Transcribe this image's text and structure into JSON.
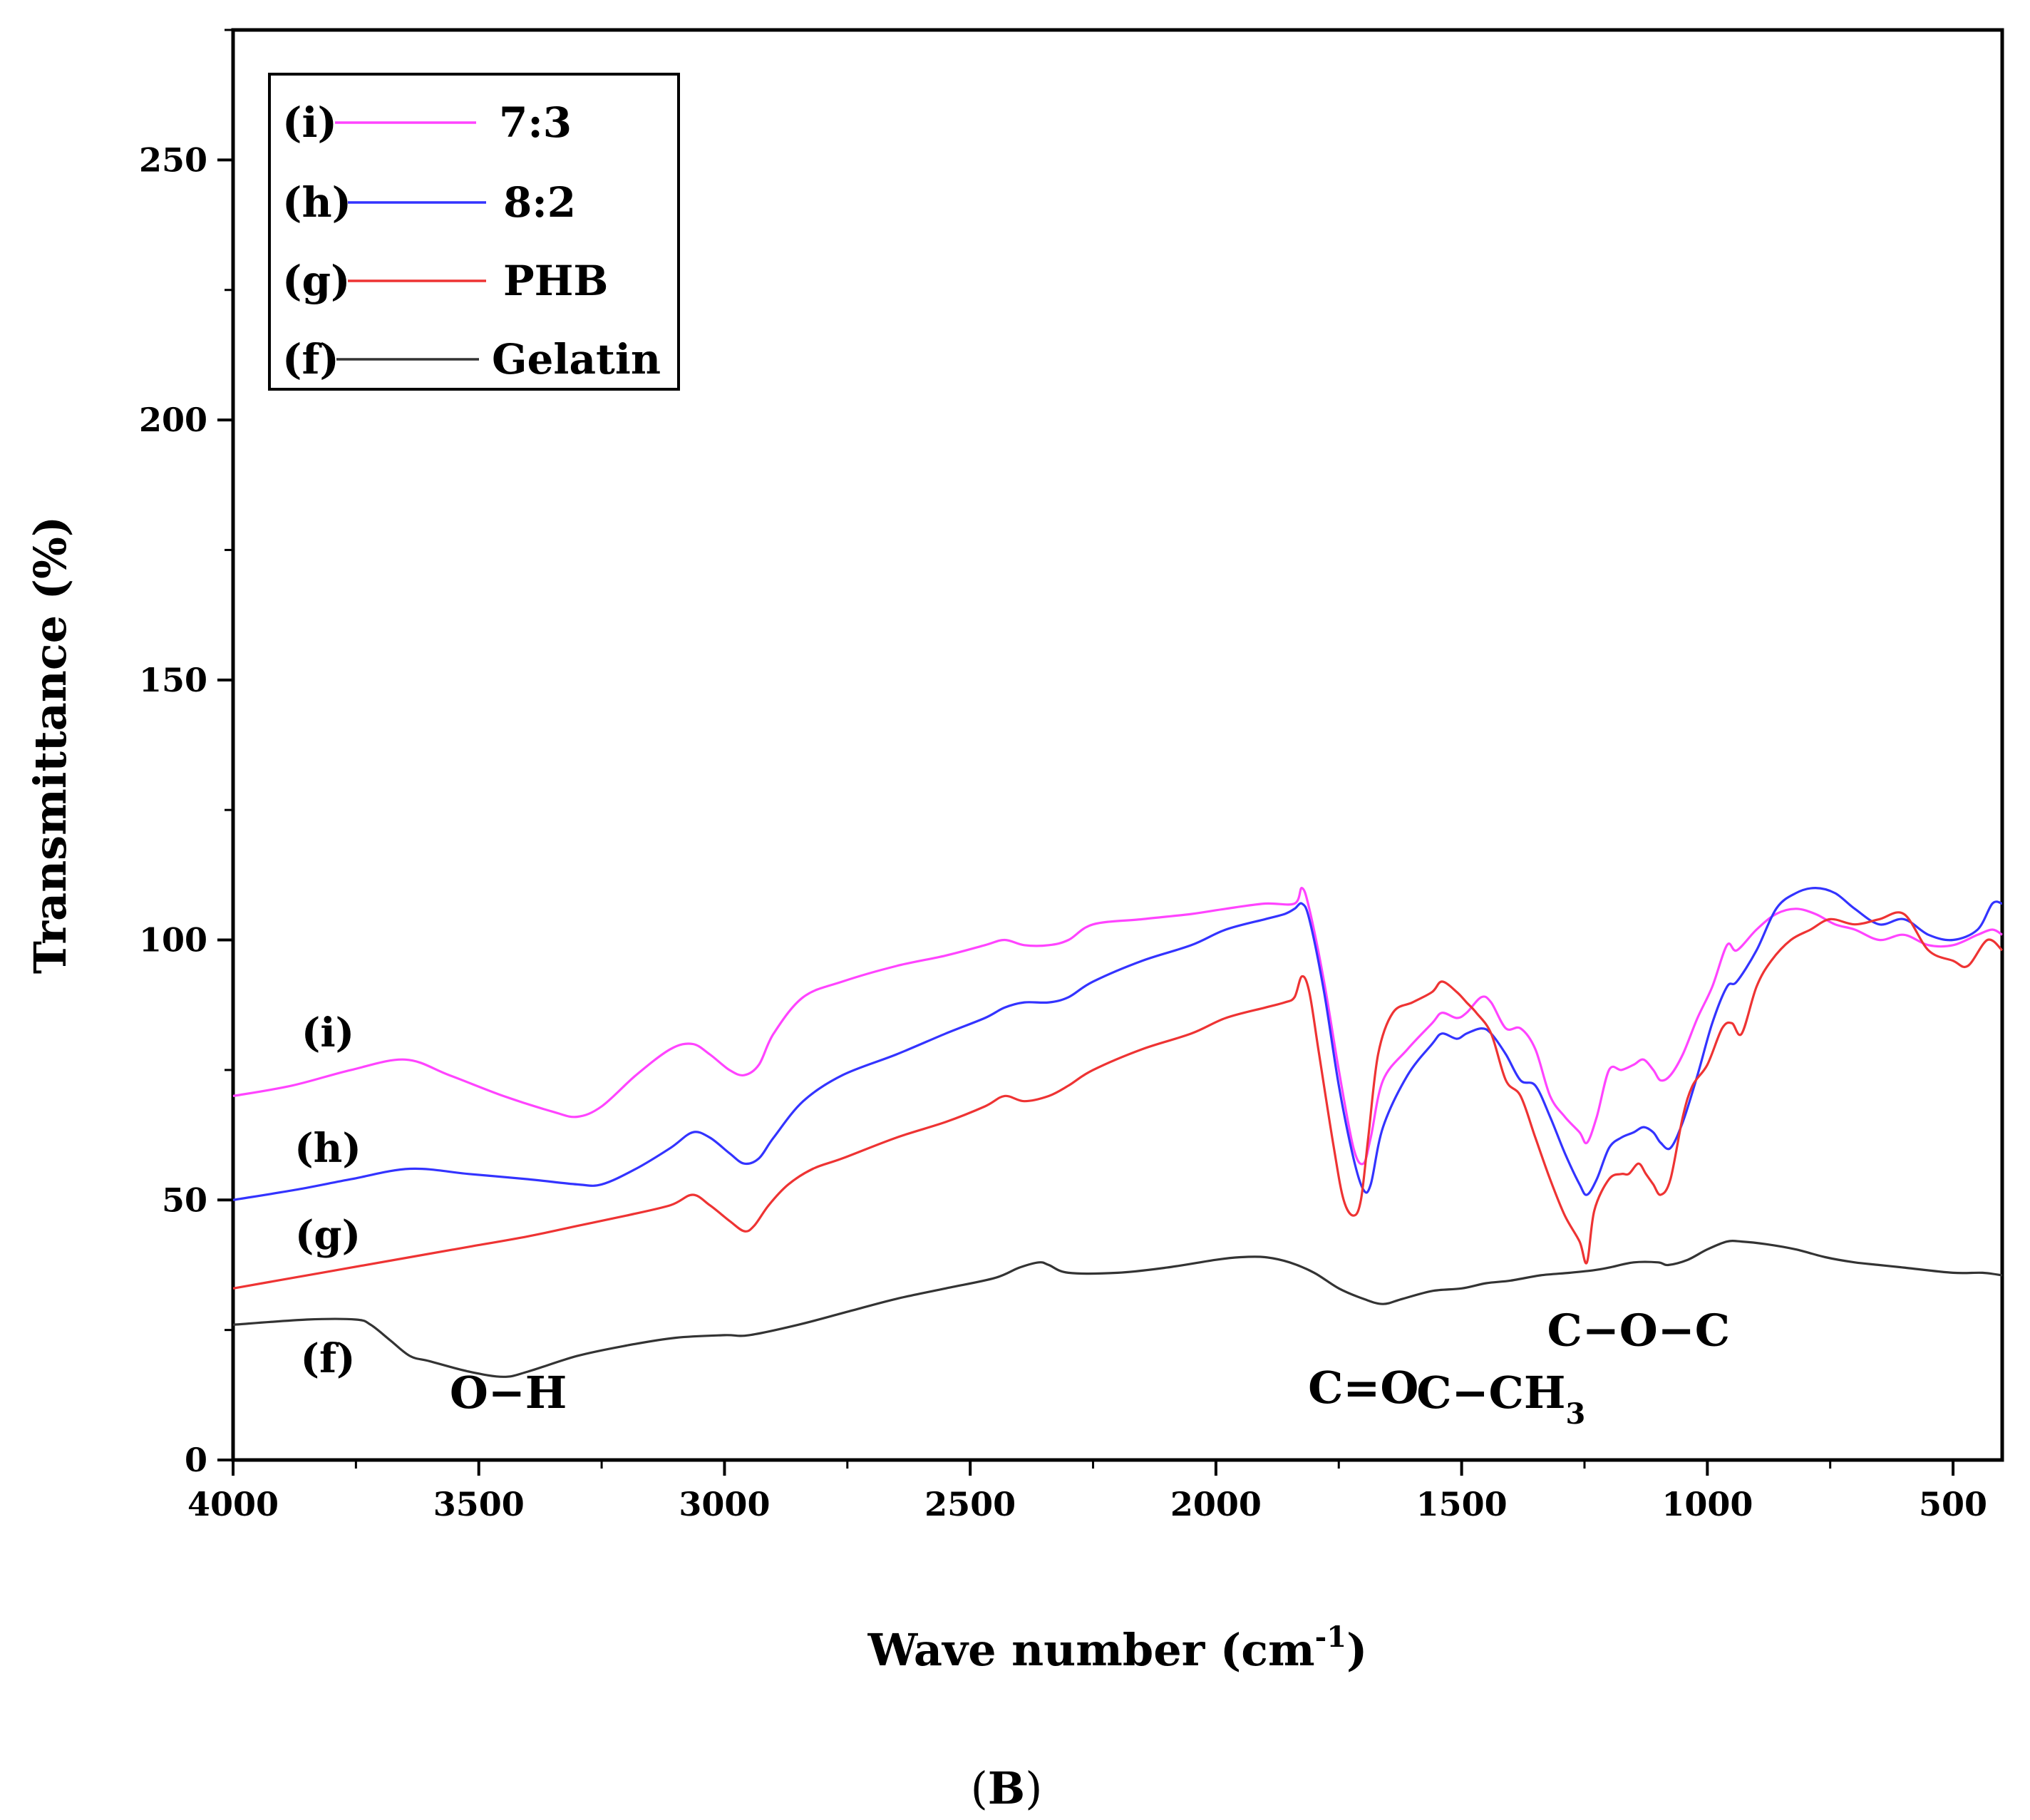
{
  "chart_data": {
    "type": "line",
    "title": "",
    "caption_left": "(",
    "caption_letter": "B",
    "caption_right": ")",
    "xlabel": "Wave number (cm",
    "xlabel_sup": "-1",
    "xlabel_end": ")",
    "ylabel": "Transmittance (%)",
    "xlim": [
      4000,
      400
    ],
    "ylim": [
      0,
      275
    ],
    "x_ticks": [
      4000,
      3500,
      3000,
      2500,
      2000,
      1500,
      1000,
      500
    ],
    "y_ticks": [
      0,
      50,
      100,
      150,
      200,
      250
    ],
    "grid": false,
    "legend_position": "top-left",
    "series": [
      {
        "name": "7:3",
        "tag": "(i)",
        "color": "#ff44ff",
        "x": [
          4000,
          3880,
          3760,
          3650,
          3560,
          3450,
          3350,
          3300,
          3250,
          3180,
          3110,
          3065,
          3030,
          2990,
          2960,
          2930,
          2900,
          2840,
          2760,
          2650,
          2550,
          2470,
          2430,
          2390,
          2340,
          2300,
          2250,
          2150,
          2050,
          1980,
          1900,
          1840,
          1825,
          1810,
          1780,
          1750,
          1720,
          1700,
          1685,
          1660,
          1610,
          1560,
          1540,
          1510,
          1490,
          1460,
          1440,
          1410,
          1380,
          1350,
          1320,
          1290,
          1260,
          1245,
          1225,
          1200,
          1175,
          1150,
          1130,
          1110,
          1095,
          1075,
          1050,
          1020,
          990,
          960,
          940,
          900,
          860,
          820,
          780,
          740,
          700,
          650,
          600,
          550,
          500,
          450,
          420,
          400
        ],
        "y": [
          70,
          72,
          75,
          77,
          74,
          70,
          67,
          66,
          68,
          74,
          79,
          80,
          78,
          75,
          74,
          76,
          82,
          89,
          92,
          95,
          97,
          99,
          100,
          99,
          99,
          100,
          103,
          104,
          105,
          106,
          107,
          107,
          110,
          106,
          92,
          75,
          60,
          57,
          62,
          73,
          79,
          84,
          86,
          85,
          86,
          89,
          88,
          83,
          83,
          79,
          70,
          66,
          63,
          61,
          66,
          75,
          75,
          76,
          77,
          75,
          73,
          74,
          78,
          85,
          91,
          99,
          98,
          102,
          105,
          106,
          105,
          103,
          102,
          100,
          101,
          99,
          99,
          101,
          102,
          101
        ]
      },
      {
        "name": "8:2",
        "tag": "(h)",
        "color": "#3333ff",
        "x": [
          4000,
          3870,
          3760,
          3640,
          3520,
          3400,
          3300,
          3250,
          3180,
          3110,
          3065,
          3030,
          2990,
          2960,
          2930,
          2900,
          2840,
          2760,
          2650,
          2550,
          2470,
          2430,
          2390,
          2340,
          2300,
          2250,
          2150,
          2050,
          1980,
          1900,
          1860,
          1840,
          1825,
          1810,
          1780,
          1750,
          1720,
          1700,
          1685,
          1660,
          1610,
          1560,
          1540,
          1510,
          1490,
          1460,
          1440,
          1410,
          1380,
          1350,
          1320,
          1290,
          1260,
          1245,
          1225,
          1200,
          1175,
          1150,
          1130,
          1110,
          1095,
          1075,
          1050,
          1020,
          990,
          960,
          940,
          900,
          860,
          820,
          780,
          740,
          700,
          650,
          600,
          550,
          500,
          450,
          420,
          400
        ],
        "y": [
          50,
          52,
          54,
          56,
          55,
          54,
          53,
          53,
          56,
          60,
          63,
          62,
          59,
          57,
          58,
          62,
          69,
          74,
          78,
          82,
          85,
          87,
          88,
          88,
          89,
          92,
          96,
          99,
          102,
          104,
          105,
          106,
          107,
          104,
          90,
          72,
          58,
          52,
          53,
          64,
          74,
          80,
          82,
          81,
          82,
          83,
          82,
          78,
          73,
          72,
          66,
          59,
          53,
          51,
          54,
          60,
          62,
          63,
          64,
          63,
          61,
          60,
          65,
          74,
          84,
          91,
          92,
          98,
          106,
          109,
          110,
          109,
          106,
          103,
          104,
          101,
          100,
          102,
          107,
          107
        ]
      },
      {
        "name": "PHB",
        "tag": "(g)",
        "color": "#ee3333",
        "x": [
          4000,
          3880,
          3760,
          3640,
          3520,
          3400,
          3300,
          3200,
          3110,
          3065,
          3030,
          2990,
          2960,
          2940,
          2910,
          2870,
          2820,
          2760,
          2650,
          2550,
          2470,
          2430,
          2390,
          2340,
          2300,
          2250,
          2150,
          2050,
          1980,
          1900,
          1860,
          1840,
          1825,
          1810,
          1790,
          1760,
          1740,
          1720,
          1705,
          1690,
          1670,
          1640,
          1600,
          1560,
          1540,
          1510,
          1490,
          1470,
          1440,
          1410,
          1380,
          1350,
          1320,
          1290,
          1260,
          1245,
          1230,
          1200,
          1175,
          1160,
          1140,
          1125,
          1110,
          1095,
          1075,
          1050,
          1030,
          1000,
          970,
          950,
          930,
          900,
          870,
          830,
          790,
          750,
          700,
          650,
          600,
          550,
          500,
          470,
          430,
          400
        ],
        "y": [
          33,
          35,
          37,
          39,
          41,
          43,
          45,
          47,
          49,
          51,
          49,
          46,
          44,
          45,
          49,
          53,
          56,
          58,
          62,
          65,
          68,
          70,
          69,
          70,
          72,
          75,
          79,
          82,
          85,
          87,
          88,
          89,
          93,
          90,
          78,
          60,
          50,
          47,
          50,
          62,
          78,
          86,
          88,
          90,
          92,
          90,
          88,
          86,
          82,
          73,
          70,
          62,
          54,
          47,
          42,
          38,
          48,
          54,
          55,
          55,
          57,
          55,
          53,
          51,
          54,
          66,
          72,
          76,
          83,
          84,
          82,
          91,
          96,
          100,
          102,
          104,
          103,
          104,
          105,
          98,
          96,
          95,
          100,
          98
        ]
      },
      {
        "name": "Gelatin",
        "tag": "(f)",
        "color": "#333333",
        "x": [
          4000,
          3850,
          3750,
          3720,
          3680,
          3640,
          3600,
          3520,
          3450,
          3400,
          3300,
          3200,
          3100,
          3000,
          2950,
          2850,
          2750,
          2650,
          2550,
          2450,
          2400,
          2360,
          2340,
          2300,
          2200,
          2100,
          2000,
          1950,
          1900,
          1850,
          1800,
          1750,
          1700,
          1660,
          1620,
          1560,
          1500,
          1450,
          1400,
          1340,
          1280,
          1230,
          1200,
          1150,
          1100,
          1080,
          1040,
          1000,
          960,
          930,
          880,
          820,
          760,
          700,
          650,
          600,
          500,
          440,
          400
        ],
        "y": [
          26,
          27,
          27,
          26,
          23,
          20,
          19,
          17,
          16,
          17,
          20,
          22,
          23.5,
          24,
          24,
          26,
          28.5,
          31,
          33,
          35,
          37,
          38,
          37.5,
          36,
          36,
          37,
          38.5,
          39,
          39,
          38,
          36,
          33,
          31,
          30,
          31,
          32.5,
          33,
          34,
          34.5,
          35.5,
          36,
          36.5,
          37,
          38,
          38,
          37.5,
          38.5,
          40.5,
          42,
          42,
          41.5,
          40.5,
          39,
          38,
          37.5,
          37,
          36,
          36,
          35.5
        ]
      }
    ],
    "curve_labels": [
      {
        "text": "(i)",
        "series": 0
      },
      {
        "text": "(h)",
        "series": 1
      },
      {
        "text": "(g)",
        "series": 2
      },
      {
        "text": "(f)",
        "series": 3
      }
    ],
    "annotations": [
      {
        "text": "O−H",
        "x": 3440,
        "y": 10
      },
      {
        "text": "C=O",
        "x": 1700,
        "y": 11
      },
      {
        "text": "C−CH",
        "sub": "3",
        "x": 1420,
        "y": 10
      },
      {
        "text": "C−O−C",
        "x": 1140,
        "y": 22
      }
    ]
  }
}
